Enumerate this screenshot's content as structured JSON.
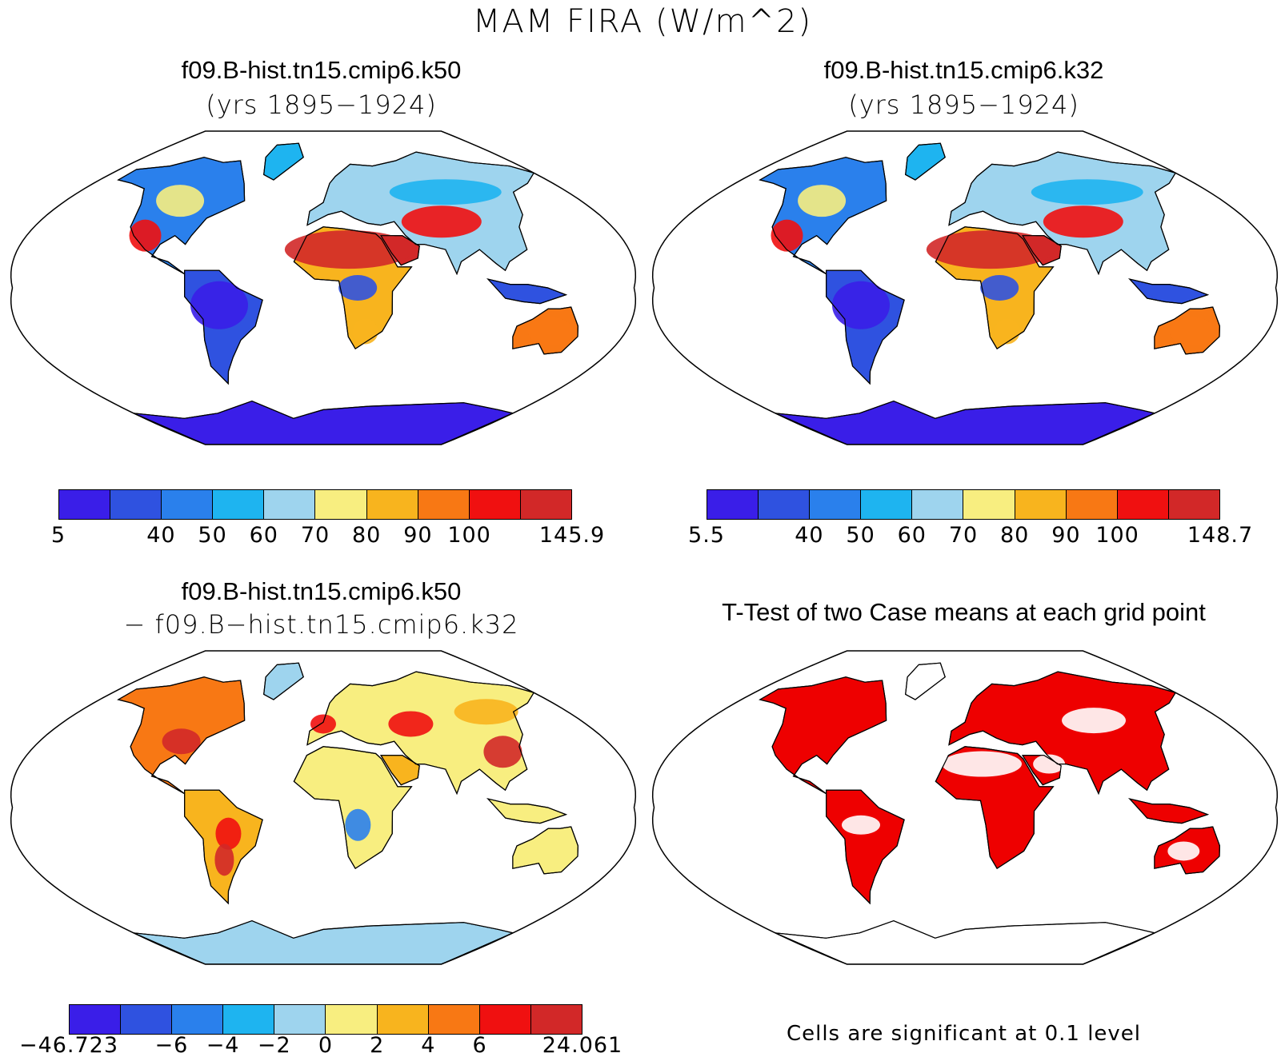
{
  "figure": {
    "title": "MAM FIRA (W/m^2)"
  },
  "panels": {
    "top_left": {
      "title": "f09.B-hist.tn15.cmip6.k50",
      "subtitle": "(yrs 1895−1924)",
      "colorbar": {
        "colors": [
          "#3a1ee8",
          "#2f52e0",
          "#2a80ec",
          "#1eb4f0",
          "#9ed4ee",
          "#f8ee80",
          "#f8b41e",
          "#f87814",
          "#f01010",
          "#d22828"
        ],
        "ticks": [
          "5",
          "40",
          "50",
          "60",
          "70",
          "80",
          "90",
          "100",
          "145.9"
        ]
      }
    },
    "top_right": {
      "title": "f09.B-hist.tn15.cmip6.k32",
      "subtitle": "(yrs 1895−1924)",
      "colorbar": {
        "colors": [
          "#3a1ee8",
          "#2f52e0",
          "#2a80ec",
          "#1eb4f0",
          "#9ed4ee",
          "#f8ee80",
          "#f8b41e",
          "#f87814",
          "#f01010",
          "#d22828"
        ],
        "ticks": [
          "5.5",
          "40",
          "50",
          "60",
          "70",
          "80",
          "90",
          "100",
          "148.7"
        ]
      }
    },
    "bottom_left": {
      "title": "f09.B-hist.tn15.cmip6.k50",
      "subtitle": "− f09.B−hist.tn15.cmip6.k32",
      "colorbar": {
        "colors": [
          "#3a1ee8",
          "#2f52e0",
          "#2a80ec",
          "#1eb4f0",
          "#9ed4ee",
          "#f8ee80",
          "#f8b41e",
          "#f87814",
          "#f01010",
          "#d22828"
        ],
        "ticks": [
          "−46.723",
          "−6",
          "−4",
          "−2",
          "0",
          "2",
          "4",
          "6",
          "24.061"
        ]
      }
    },
    "bottom_right": {
      "title": "T-Test of two Case means at each grid point",
      "note": "Cells are significant at 0.1 level",
      "significant_color": "#ee0000"
    }
  }
}
